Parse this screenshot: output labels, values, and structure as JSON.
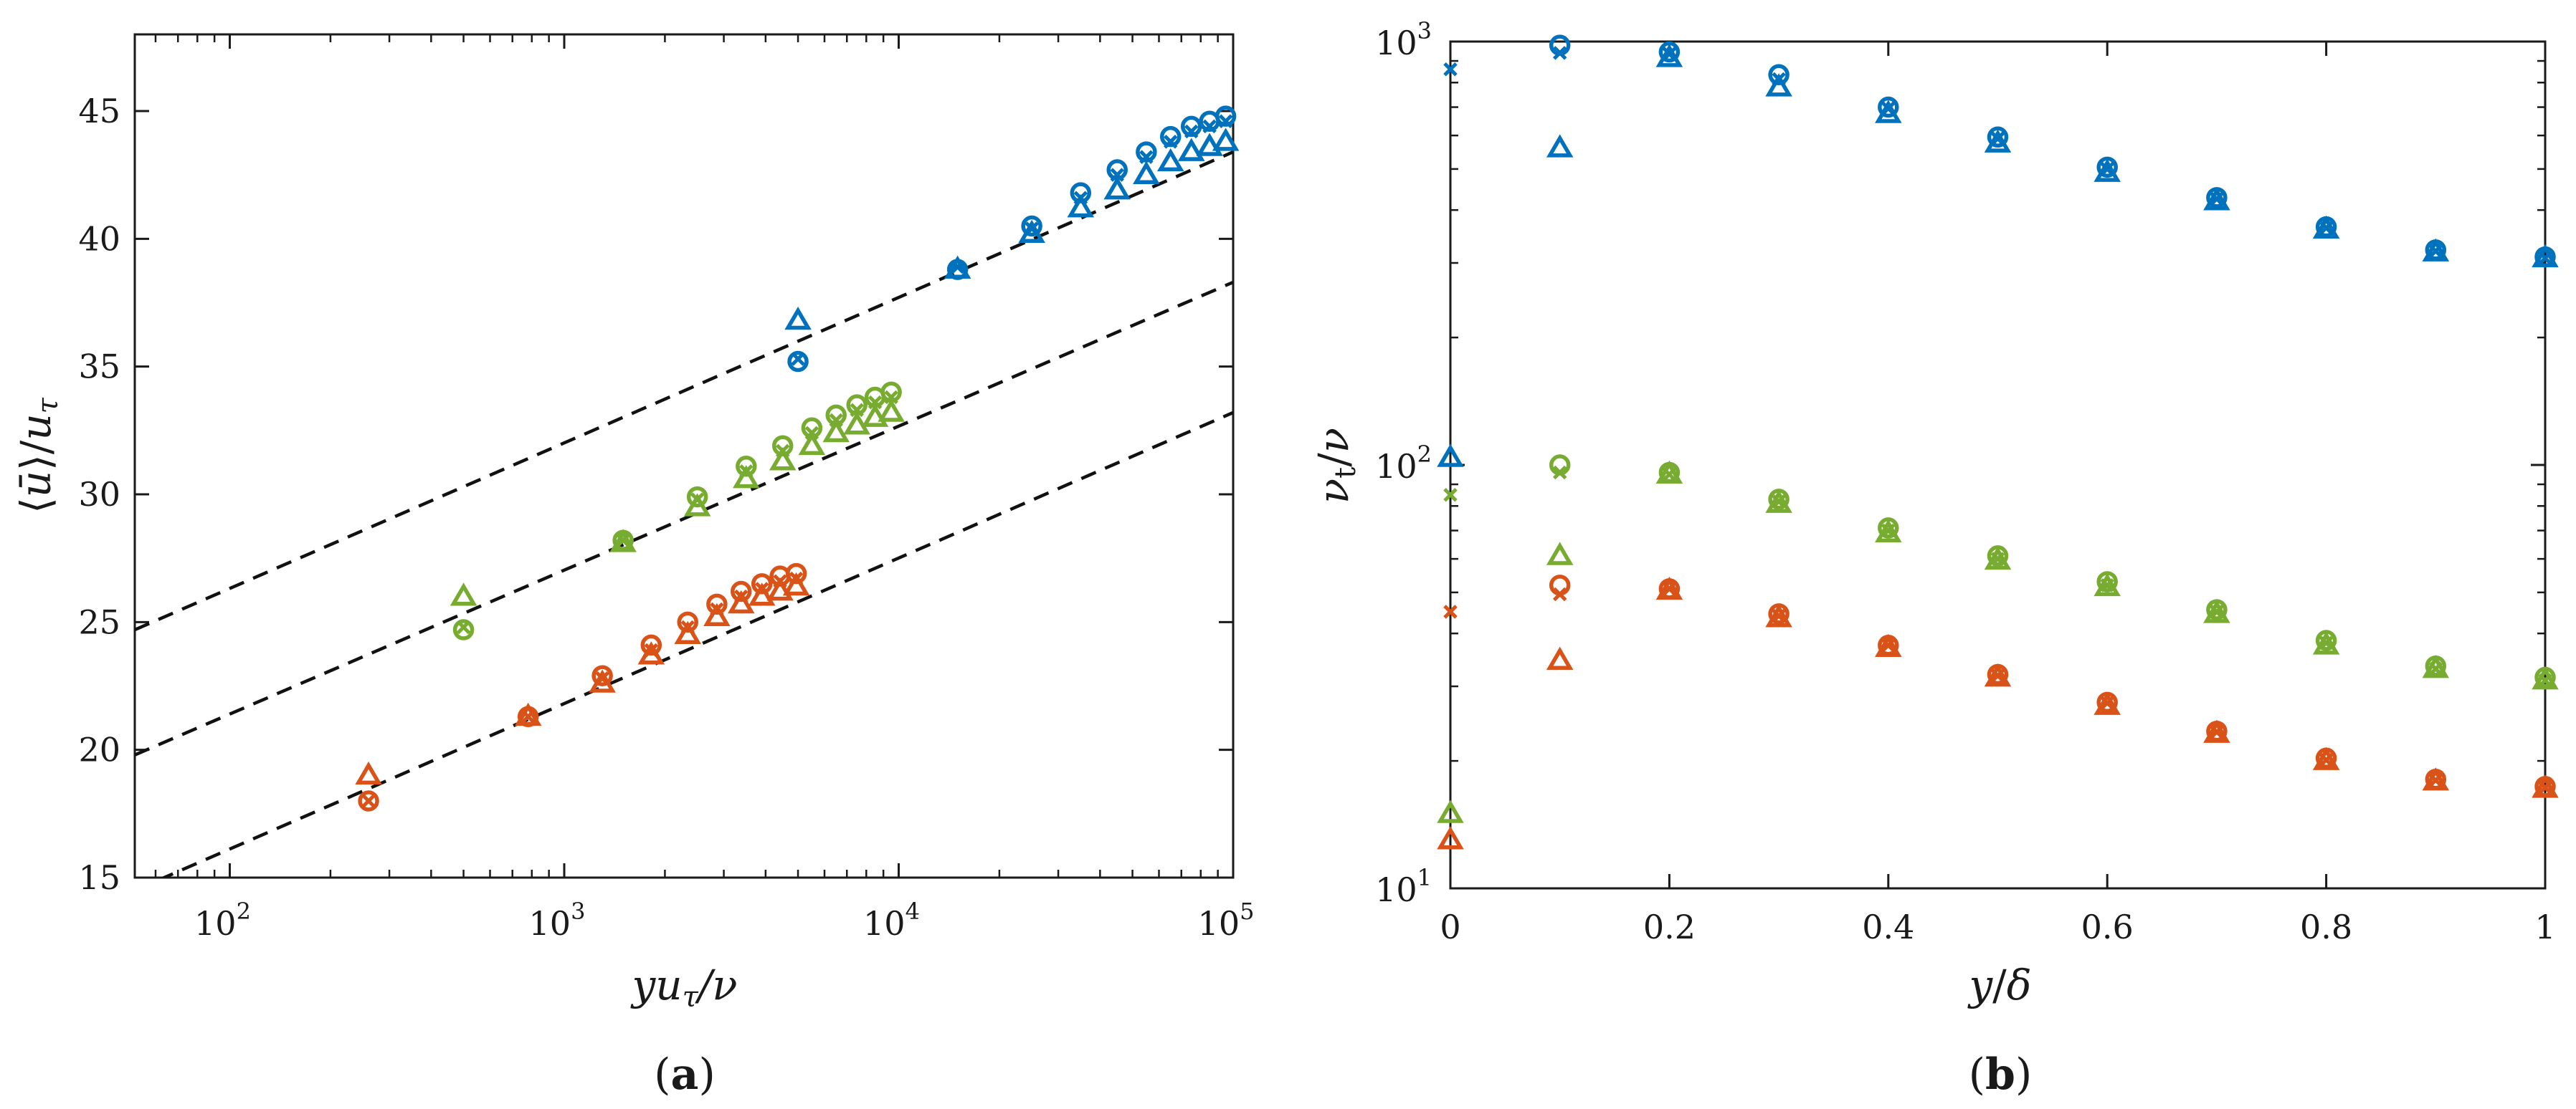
{
  "colors": {
    "blue": "#0072BD",
    "green": "#77AC30",
    "orange": "#D95319",
    "axis": "#1a1a1a",
    "ref": "#111111"
  },
  "chart_data": [
    {
      "id": "a",
      "type": "scatter",
      "panel_label": "a",
      "xlabel": "yuτ/ν",
      "ylabel": "⟨ū⟩/uτ",
      "xscale": "log",
      "xlim": [
        52,
        100000
      ],
      "ylim": [
        15,
        48
      ],
      "xticks": [
        100,
        1000,
        10000,
        100000
      ],
      "xtick_labels": [
        {
          "base": "10",
          "exp": "2"
        },
        {
          "base": "10",
          "exp": "3"
        },
        {
          "base": "10",
          "exp": "4"
        },
        {
          "base": "10",
          "exp": "5"
        }
      ],
      "yticks": [
        15,
        20,
        25,
        30,
        35,
        40,
        45
      ],
      "ytick_labels": [
        "15",
        "20",
        "25",
        "30",
        "35",
        "40",
        "45"
      ],
      "reference_lines": [
        {
          "style": "dashed",
          "x": [
            52,
            100000
          ],
          "y": [
            24.7,
            43.4
          ]
        },
        {
          "style": "dashed",
          "x": [
            52,
            100000
          ],
          "y": [
            19.8,
            38.3
          ]
        },
        {
          "style": "dashed",
          "x": [
            52,
            100000
          ],
          "y": [
            14.5,
            33.2
          ]
        }
      ],
      "series": [
        {
          "name": "blue circle",
          "color": "blue",
          "marker": "circle",
          "x": [
            5000,
            15000,
            25000,
            35000,
            45000,
            55000,
            65000,
            75000,
            85000,
            95000
          ],
          "y": [
            35.2,
            38.8,
            40.5,
            41.8,
            42.7,
            43.4,
            44.0,
            44.4,
            44.6,
            44.8
          ]
        },
        {
          "name": "blue cross",
          "color": "blue",
          "marker": "x",
          "x": [
            5000,
            15000,
            25000,
            35000,
            45000,
            55000,
            65000,
            75000,
            85000,
            95000
          ],
          "y": [
            35.3,
            38.9,
            40.4,
            41.6,
            42.5,
            43.2,
            43.8,
            44.2,
            44.4,
            44.6
          ]
        },
        {
          "name": "blue triangle",
          "color": "blue",
          "marker": "triangle",
          "x": [
            5000,
            15000,
            25000,
            35000,
            45000,
            55000,
            65000,
            75000,
            85000,
            95000
          ],
          "y": [
            36.8,
            38.8,
            40.2,
            41.2,
            41.9,
            42.5,
            43.0,
            43.4,
            43.6,
            43.8
          ]
        },
        {
          "name": "green circle",
          "color": "green",
          "marker": "circle",
          "x": [
            500,
            1500,
            2500,
            3500,
            4500,
            5500,
            6500,
            7500,
            8500,
            9500
          ],
          "y": [
            24.7,
            28.2,
            29.9,
            31.1,
            31.9,
            32.6,
            33.1,
            33.5,
            33.8,
            34.0
          ]
        },
        {
          "name": "green cross",
          "color": "green",
          "marker": "x",
          "x": [
            500,
            1500,
            2500,
            3500,
            4500,
            5500,
            6500,
            7500,
            8500,
            9500
          ],
          "y": [
            24.8,
            28.2,
            29.8,
            30.9,
            31.7,
            32.4,
            32.9,
            33.3,
            33.6,
            33.8
          ]
        },
        {
          "name": "green triangle",
          "color": "green",
          "marker": "triangle",
          "x": [
            500,
            1500,
            2500,
            3500,
            4500,
            5500,
            6500,
            7500,
            8500,
            9500
          ],
          "y": [
            26.0,
            28.1,
            29.5,
            30.6,
            31.3,
            31.9,
            32.4,
            32.7,
            33.0,
            33.2
          ]
        },
        {
          "name": "orange circle",
          "color": "orange",
          "marker": "circle",
          "x": [
            260,
            780,
            1300,
            1820,
            2340,
            2860,
            3380,
            3900,
            4420,
            4940
          ],
          "y": [
            18.0,
            21.3,
            22.9,
            24.1,
            25.0,
            25.7,
            26.2,
            26.5,
            26.8,
            26.9
          ]
        },
        {
          "name": "orange cross",
          "color": "orange",
          "marker": "x",
          "x": [
            260,
            780,
            1300,
            1820,
            2340,
            2860,
            3380,
            3900,
            4420,
            4940
          ],
          "y": [
            18.0,
            21.3,
            22.8,
            23.9,
            24.8,
            25.5,
            26.0,
            26.3,
            26.6,
            26.7
          ]
        },
        {
          "name": "orange triangle",
          "color": "orange",
          "marker": "triangle",
          "x": [
            260,
            780,
            1300,
            1820,
            2340,
            2860,
            3380,
            3900,
            4420,
            4940
          ],
          "y": [
            19.0,
            21.3,
            22.6,
            23.7,
            24.5,
            25.2,
            25.7,
            26.0,
            26.2,
            26.4
          ]
        }
      ]
    },
    {
      "id": "b",
      "type": "scatter",
      "panel_label": "b",
      "xlabel": "y/δ",
      "ylabel": "νt/ν",
      "yscale": "log",
      "xlim": [
        0,
        1
      ],
      "ylim": [
        10,
        1000
      ],
      "xticks": [
        0,
        0.2,
        0.4,
        0.6,
        0.8,
        1
      ],
      "xtick_labels": [
        "0",
        "0.2",
        "0.4",
        "0.6",
        "0.8",
        "1"
      ],
      "yticks": [
        10,
        100,
        1000
      ],
      "ytick_labels": [
        {
          "base": "10",
          "exp": "1"
        },
        {
          "base": "10",
          "exp": "2"
        },
        {
          "base": "10",
          "exp": "3"
        }
      ],
      "series": [
        {
          "name": "blue circle",
          "color": "blue",
          "marker": "circle",
          "x": [
            0.1,
            0.2,
            0.3,
            0.4,
            0.5,
            0.6,
            0.7,
            0.8,
            0.9,
            1.0
          ],
          "y": [
            980,
            945,
            835,
            700,
            595,
            505,
            428,
            365,
            322,
            310
          ]
        },
        {
          "name": "blue cross",
          "color": "blue",
          "marker": "x",
          "x": [
            0,
            0.1,
            0.2,
            0.3,
            0.4,
            0.5,
            0.6,
            0.7,
            0.8,
            0.9,
            1.0
          ],
          "y": [
            860,
            940,
            935,
            815,
            695,
            590,
            500,
            425,
            363,
            320,
            308
          ]
        },
        {
          "name": "blue triangle",
          "color": "blue",
          "marker": "triangle",
          "x": [
            0,
            0.1,
            0.2,
            0.3,
            0.4,
            0.5,
            0.6,
            0.7,
            0.8,
            0.9,
            1.0
          ],
          "y": [
            104,
            560,
            915,
            780,
            675,
            575,
            490,
            420,
            360,
            318,
            308
          ]
        },
        {
          "name": "green circle",
          "color": "green",
          "marker": "circle",
          "x": [
            0.1,
            0.2,
            0.3,
            0.4,
            0.5,
            0.6,
            0.7,
            0.8,
            0.9,
            1.0
          ],
          "y": [
            100,
            96,
            83,
            71,
            61,
            53,
            45.5,
            38.5,
            33.5,
            31.5
          ]
        },
        {
          "name": "green cross",
          "color": "green",
          "marker": "x",
          "x": [
            0,
            0.1,
            0.2,
            0.3,
            0.4,
            0.5,
            0.6,
            0.7,
            0.8,
            0.9,
            1.0
          ],
          "y": [
            85,
            96,
            95,
            82,
            70,
            60,
            52,
            45,
            38,
            33,
            31
          ]
        },
        {
          "name": "green triangle",
          "color": "green",
          "marker": "triangle",
          "x": [
            0,
            0.1,
            0.2,
            0.3,
            0.4,
            0.5,
            0.6,
            0.7,
            0.8,
            0.9,
            1.0
          ],
          "y": [
            15,
            61,
            95,
            81,
            69,
            59.5,
            51.5,
            44.5,
            37.5,
            33,
            31
          ]
        },
        {
          "name": "orange circle",
          "color": "orange",
          "marker": "circle",
          "x": [
            0.1,
            0.2,
            0.3,
            0.4,
            0.5,
            0.6,
            0.7,
            0.8,
            0.9,
            1.0
          ],
          "y": [
            52,
            51,
            44.5,
            37.5,
            32,
            27.5,
            23.5,
            20.3,
            18.1,
            17.4
          ]
        },
        {
          "name": "orange cross",
          "color": "orange",
          "marker": "x",
          "x": [
            0,
            0.1,
            0.2,
            0.3,
            0.4,
            0.5,
            0.6,
            0.7,
            0.8,
            0.9,
            1.0
          ],
          "y": [
            45,
            49.5,
            51,
            44,
            37.5,
            31.8,
            27.4,
            23.4,
            20.1,
            18,
            17.3
          ]
        },
        {
          "name": "orange triangle",
          "color": "orange",
          "marker": "triangle",
          "x": [
            0,
            0.1,
            0.2,
            0.3,
            0.4,
            0.5,
            0.6,
            0.7,
            0.8,
            0.9,
            1.0
          ],
          "y": [
            13,
            34.5,
            50.5,
            43.5,
            37,
            31.5,
            27,
            23.2,
            20,
            17.9,
            17.2
          ]
        }
      ]
    }
  ]
}
